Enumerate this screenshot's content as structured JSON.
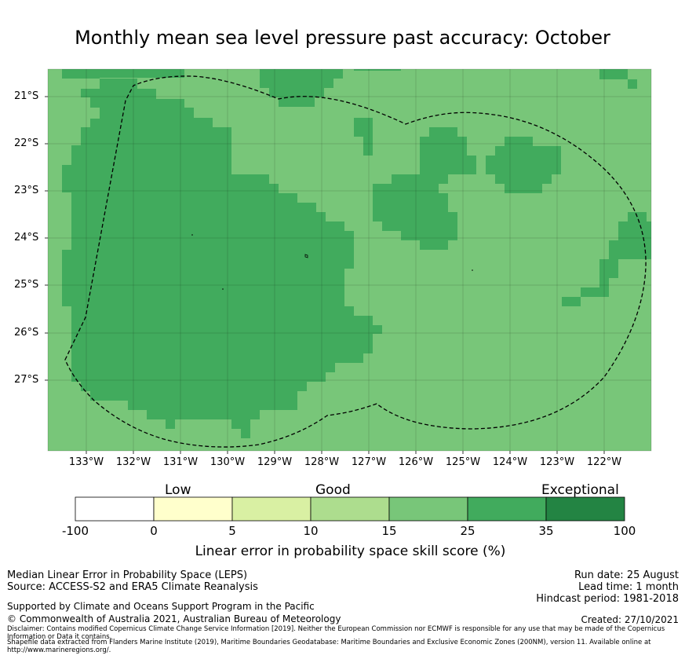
{
  "title": "Monthly mean sea level pressure past accuracy: October",
  "map": {
    "lat_labels": [
      "21°S",
      "22°S",
      "23°S",
      "24°S",
      "25°S",
      "26°S",
      "27°S"
    ],
    "lon_labels": [
      "133°W",
      "132°W",
      "131°W",
      "130°W",
      "129°W",
      "128°W",
      "127°W",
      "126°W",
      "125°W",
      "124°W",
      "123°W",
      "122°W"
    ],
    "colors": {
      "skill_25_35": "#78c679",
      "skill_35_100": "#41ab5d",
      "boundary": "#000000"
    },
    "boundary_style": "dashed"
  },
  "colorbar": {
    "categories": [
      "Low",
      "Good",
      "Exceptional"
    ],
    "ticks": [
      "-100",
      "0",
      "5",
      "10",
      "15",
      "25",
      "35",
      "100"
    ],
    "colors": [
      "#ffffff",
      "#ffffcc",
      "#d9f0a3",
      "#addd8e",
      "#78c679",
      "#41ab5d",
      "#238443"
    ],
    "axis_label": "Linear error in probability space skill score (%)"
  },
  "footer": {
    "left1": "Median Linear Error in Probability Space (LEPS)",
    "left2": "Source: ACCESS-S2 and ERA5 Climate Reanalysis",
    "run_date": "Run date: 25 August",
    "lead_time": "Lead time: 1 month",
    "hindcast": "Hindcast period: 1981-2018",
    "support": "Supported by Climate and Oceans Support Program in the Pacific",
    "copyright": "© Commonwealth of Australia 2021, Australian Bureau of Meteorology",
    "created": "Created: 27/10/2021",
    "disclaimer": "Disclaimer: Contains modified Copernicus Climate Change Service Information [2019]. Neither the European Commission nor ECMWF is responsible for any use that may be made of the Copernicus Information or Data it contains.",
    "shapefile": "Shapefile data extracted from Flanders Marine Institute (2019), Maritime Boundaries Geodatabase: Maritime Boundaries and Exclusive Economic Zones (200NM), version 11. Available online at http://www.marineregions.org/."
  }
}
